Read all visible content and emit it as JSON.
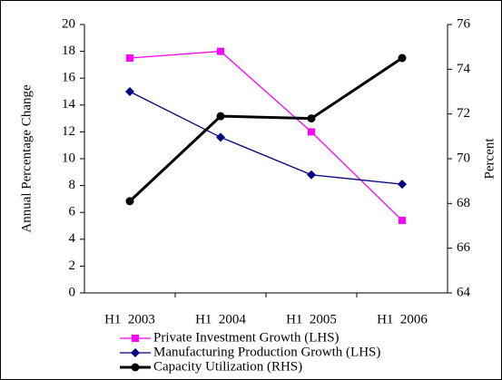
{
  "chart_data": {
    "type": "line",
    "categories": [
      "H1  2003",
      "H1  2004",
      "H1  2005",
      "H1  2006"
    ],
    "series": [
      {
        "name": "Private Investment Growth (LHS)",
        "color": "#ff00ff",
        "marker": "square",
        "values": [
          17.5,
          18.0,
          12.0,
          5.4
        ]
      },
      {
        "name": "Manufacturing Production Growth (LHS)",
        "color": "#000080",
        "marker": "diamond",
        "values": [
          15.0,
          11.6,
          8.8,
          8.1
        ]
      },
      {
        "name": "Capacity Utilization (RHS)",
        "color": "#000000",
        "marker": "circle",
        "axis": "y2",
        "values": [
          68.1,
          71.9,
          71.8,
          74.5
        ]
      }
    ],
    "ylabel": "Annual Percentage Change",
    "y2label": "Percent",
    "ylim": [
      0,
      20
    ],
    "yticks": [
      0,
      2,
      4,
      6,
      8,
      10,
      12,
      14,
      16,
      18,
      20
    ],
    "y2lim": [
      64,
      76
    ],
    "y2ticks": [
      64,
      66,
      68,
      70,
      72,
      74,
      76
    ],
    "grid": false,
    "legend": "bottom"
  }
}
